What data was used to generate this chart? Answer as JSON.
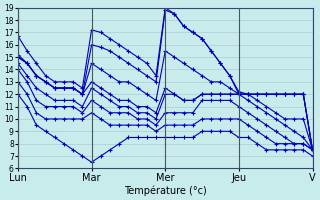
{
  "xlabel": "Température (°c)",
  "bg_color": "#c8ecec",
  "grid_color": "#aabbcc",
  "line_color": "#0000bb",
  "ylim_min": 6,
  "ylim_max": 19,
  "yticks": [
    6,
    7,
    8,
    9,
    10,
    11,
    12,
    13,
    14,
    15,
    16,
    17,
    18,
    19
  ],
  "xlim_min": 0,
  "xlim_max": 96,
  "day_positions": [
    0,
    24,
    48,
    72,
    96
  ],
  "day_labels": [
    "Lun",
    "Mar",
    "Mer",
    "Jeu",
    "V"
  ],
  "series": [
    {
      "pts": [
        [
          0,
          16.7
        ],
        [
          3,
          15.5
        ],
        [
          6,
          14.5
        ],
        [
          9,
          13.5
        ],
        [
          12,
          13.0
        ],
        [
          15,
          13.0
        ],
        [
          18,
          13.0
        ],
        [
          21,
          12.5
        ],
        [
          24,
          17.2
        ],
        [
          27,
          17.0
        ],
        [
          30,
          16.5
        ],
        [
          33,
          16.0
        ],
        [
          36,
          15.5
        ],
        [
          39,
          15.0
        ],
        [
          42,
          14.5
        ],
        [
          45,
          13.5
        ],
        [
          48,
          19.0
        ],
        [
          51,
          18.5
        ],
        [
          54,
          17.5
        ],
        [
          57,
          17.0
        ],
        [
          60,
          16.5
        ],
        [
          63,
          15.5
        ],
        [
          66,
          14.5
        ],
        [
          69,
          13.5
        ],
        [
          72,
          12.0
        ],
        [
          75,
          12.0
        ],
        [
          78,
          12.0
        ],
        [
          81,
          12.0
        ],
        [
          84,
          12.0
        ],
        [
          87,
          12.0
        ],
        [
          90,
          12.0
        ],
        [
          93,
          12.0
        ],
        [
          96,
          7.5
        ]
      ]
    },
    {
      "pts": [
        [
          0,
          15.2
        ],
        [
          3,
          14.5
        ],
        [
          6,
          13.5
        ],
        [
          9,
          13.0
        ],
        [
          12,
          12.5
        ],
        [
          15,
          12.5
        ],
        [
          18,
          12.5
        ],
        [
          21,
          12.0
        ],
        [
          24,
          16.0
        ],
        [
          27,
          15.8
        ],
        [
          30,
          15.5
        ],
        [
          33,
          15.0
        ],
        [
          36,
          14.5
        ],
        [
          39,
          14.0
        ],
        [
          42,
          13.5
        ],
        [
          45,
          13.0
        ],
        [
          48,
          18.8
        ],
        [
          51,
          18.5
        ],
        [
          54,
          17.5
        ],
        [
          57,
          17.0
        ],
        [
          60,
          16.5
        ],
        [
          63,
          15.5
        ],
        [
          66,
          14.5
        ],
        [
          69,
          13.5
        ],
        [
          72,
          12.2
        ],
        [
          75,
          12.0
        ],
        [
          78,
          12.0
        ],
        [
          81,
          12.0
        ],
        [
          84,
          12.0
        ],
        [
          87,
          12.0
        ],
        [
          90,
          12.0
        ],
        [
          93,
          12.0
        ],
        [
          96,
          7.5
        ]
      ]
    },
    {
      "pts": [
        [
          0,
          15.0
        ],
        [
          3,
          14.5
        ],
        [
          6,
          13.5
        ],
        [
          9,
          13.0
        ],
        [
          12,
          12.5
        ],
        [
          15,
          12.5
        ],
        [
          18,
          12.5
        ],
        [
          21,
          12.0
        ],
        [
          24,
          14.5
        ],
        [
          27,
          14.0
        ],
        [
          30,
          13.5
        ],
        [
          33,
          13.0
        ],
        [
          36,
          13.0
        ],
        [
          39,
          12.5
        ],
        [
          42,
          12.0
        ],
        [
          45,
          11.5
        ],
        [
          48,
          15.5
        ],
        [
          51,
          15.0
        ],
        [
          54,
          14.5
        ],
        [
          57,
          14.0
        ],
        [
          60,
          13.5
        ],
        [
          63,
          13.0
        ],
        [
          66,
          13.0
        ],
        [
          69,
          12.5
        ],
        [
          72,
          12.0
        ],
        [
          75,
          12.0
        ],
        [
          78,
          12.0
        ],
        [
          81,
          12.0
        ],
        [
          84,
          12.0
        ],
        [
          87,
          12.0
        ],
        [
          90,
          12.0
        ],
        [
          93,
          12.0
        ],
        [
          96,
          7.5
        ]
      ]
    },
    {
      "pts": [
        [
          0,
          15.0
        ],
        [
          3,
          14.5
        ],
        [
          6,
          13.5
        ],
        [
          9,
          13.0
        ],
        [
          12,
          12.5
        ],
        [
          15,
          12.5
        ],
        [
          18,
          12.5
        ],
        [
          21,
          12.0
        ],
        [
          24,
          13.0
        ],
        [
          27,
          12.5
        ],
        [
          30,
          12.0
        ],
        [
          33,
          11.5
        ],
        [
          36,
          11.5
        ],
        [
          39,
          11.0
        ],
        [
          42,
          11.0
        ],
        [
          45,
          10.5
        ],
        [
          48,
          12.5
        ],
        [
          51,
          12.0
        ],
        [
          54,
          11.5
        ],
        [
          57,
          11.5
        ],
        [
          60,
          12.0
        ],
        [
          63,
          12.0
        ],
        [
          66,
          12.0
        ],
        [
          69,
          12.0
        ],
        [
          72,
          12.0
        ],
        [
          75,
          12.0
        ],
        [
          78,
          11.5
        ],
        [
          81,
          11.0
        ],
        [
          84,
          10.5
        ],
        [
          87,
          10.0
        ],
        [
          90,
          10.0
        ],
        [
          93,
          10.0
        ],
        [
          96,
          7.5
        ]
      ]
    },
    {
      "pts": [
        [
          0,
          14.5
        ],
        [
          3,
          13.5
        ],
        [
          6,
          12.5
        ],
        [
          9,
          12.0
        ],
        [
          12,
          11.5
        ],
        [
          15,
          11.5
        ],
        [
          18,
          11.5
        ],
        [
          21,
          11.0
        ],
        [
          24,
          12.5
        ],
        [
          27,
          12.0
        ],
        [
          30,
          11.5
        ],
        [
          33,
          11.0
        ],
        [
          36,
          11.0
        ],
        [
          39,
          10.5
        ],
        [
          42,
          10.5
        ],
        [
          45,
          10.0
        ],
        [
          48,
          12.0
        ],
        [
          51,
          12.0
        ],
        [
          54,
          11.5
        ],
        [
          57,
          11.5
        ],
        [
          60,
          12.0
        ],
        [
          63,
          12.0
        ],
        [
          66,
          12.0
        ],
        [
          69,
          12.0
        ],
        [
          72,
          12.0
        ],
        [
          75,
          11.5
        ],
        [
          78,
          11.0
        ],
        [
          81,
          10.5
        ],
        [
          84,
          10.0
        ],
        [
          87,
          9.5
        ],
        [
          90,
          9.0
        ],
        [
          93,
          8.5
        ],
        [
          96,
          7.5
        ]
      ]
    },
    {
      "pts": [
        [
          0,
          14.0
        ],
        [
          3,
          13.0
        ],
        [
          6,
          11.5
        ],
        [
          9,
          11.0
        ],
        [
          12,
          11.0
        ],
        [
          15,
          11.0
        ],
        [
          18,
          11.0
        ],
        [
          21,
          10.5
        ],
        [
          24,
          11.5
        ],
        [
          27,
          11.0
        ],
        [
          30,
          10.5
        ],
        [
          33,
          10.5
        ],
        [
          36,
          10.5
        ],
        [
          39,
          10.0
        ],
        [
          42,
          10.0
        ],
        [
          45,
          9.5
        ],
        [
          48,
          10.5
        ],
        [
          51,
          10.5
        ],
        [
          54,
          10.5
        ],
        [
          57,
          10.5
        ],
        [
          60,
          11.5
        ],
        [
          63,
          11.5
        ],
        [
          66,
          11.5
        ],
        [
          69,
          11.5
        ],
        [
          72,
          11.0
        ],
        [
          75,
          10.5
        ],
        [
          78,
          10.0
        ],
        [
          81,
          9.5
        ],
        [
          84,
          9.0
        ],
        [
          87,
          8.5
        ],
        [
          90,
          8.0
        ],
        [
          93,
          8.0
        ],
        [
          96,
          7.5
        ]
      ]
    },
    {
      "pts": [
        [
          0,
          13.0
        ],
        [
          3,
          12.0
        ],
        [
          6,
          10.5
        ],
        [
          9,
          10.0
        ],
        [
          12,
          10.0
        ],
        [
          15,
          10.0
        ],
        [
          18,
          10.0
        ],
        [
          21,
          10.0
        ],
        [
          24,
          10.5
        ],
        [
          27,
          10.0
        ],
        [
          30,
          9.5
        ],
        [
          33,
          9.5
        ],
        [
          36,
          9.5
        ],
        [
          39,
          9.5
        ],
        [
          42,
          9.5
        ],
        [
          45,
          9.0
        ],
        [
          48,
          9.5
        ],
        [
          51,
          9.5
        ],
        [
          54,
          9.5
        ],
        [
          57,
          9.5
        ],
        [
          60,
          10.0
        ],
        [
          63,
          10.0
        ],
        [
          66,
          10.0
        ],
        [
          69,
          10.0
        ],
        [
          72,
          10.0
        ],
        [
          75,
          9.5
        ],
        [
          78,
          9.0
        ],
        [
          81,
          8.5
        ],
        [
          84,
          8.0
        ],
        [
          87,
          8.0
        ],
        [
          90,
          8.0
        ],
        [
          93,
          8.0
        ],
        [
          96,
          7.5
        ]
      ]
    },
    {
      "pts": [
        [
          0,
          12.0
        ],
        [
          3,
          11.0
        ],
        [
          6,
          9.5
        ],
        [
          9,
          9.0
        ],
        [
          12,
          8.5
        ],
        [
          15,
          8.0
        ],
        [
          18,
          7.5
        ],
        [
          21,
          7.0
        ],
        [
          24,
          6.5
        ],
        [
          27,
          7.0
        ],
        [
          30,
          7.5
        ],
        [
          33,
          8.0
        ],
        [
          36,
          8.5
        ],
        [
          39,
          8.5
        ],
        [
          42,
          8.5
        ],
        [
          45,
          8.5
        ],
        [
          48,
          8.5
        ],
        [
          51,
          8.5
        ],
        [
          54,
          8.5
        ],
        [
          57,
          8.5
        ],
        [
          60,
          9.0
        ],
        [
          63,
          9.0
        ],
        [
          66,
          9.0
        ],
        [
          69,
          9.0
        ],
        [
          72,
          8.5
        ],
        [
          75,
          8.5
        ],
        [
          78,
          8.0
        ],
        [
          81,
          7.5
        ],
        [
          84,
          7.5
        ],
        [
          87,
          7.5
        ],
        [
          90,
          7.5
        ],
        [
          93,
          7.5
        ],
        [
          96,
          7.0
        ]
      ]
    }
  ]
}
